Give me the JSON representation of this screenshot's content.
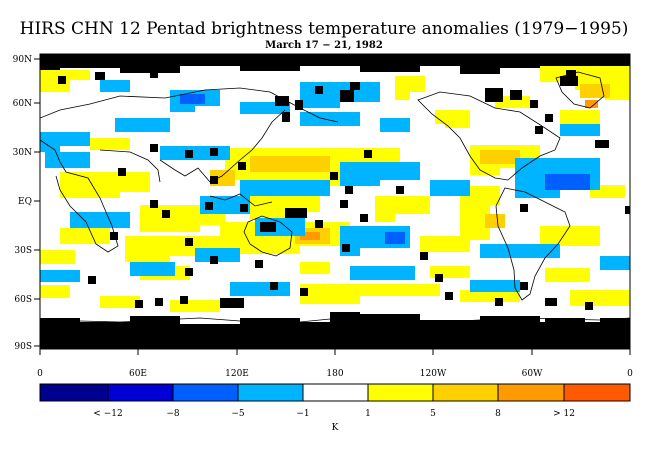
{
  "figure": {
    "title": "HIRS CHN 12 Pentad brightness temperature anomalies (1979−1995)",
    "subtitle": "March 17 − 21, 1982"
  },
  "axes": {
    "y_ticks": [
      "90N",
      "60N",
      "30N",
      "EQ",
      "30S",
      "60S",
      "90S"
    ],
    "x_ticks": [
      "0",
      "60E",
      "120E",
      "180",
      "120W",
      "60W",
      "0"
    ]
  },
  "colorbar": {
    "colors": [
      "#00008f",
      "#0000d6",
      "#0060ff",
      "#00b4ff",
      "#ffffff",
      "#ffff00",
      "#ffd000",
      "#ff9a00",
      "#ff5a00",
      "#ff0000"
    ],
    "labels": [
      "< −12",
      "−8",
      "−5",
      "−1",
      "1",
      "5",
      "8",
      "> 12"
    ],
    "units": "K"
  },
  "colors": {
    "missing": "#000000",
    "coast": "#000000",
    "frame": "#000000"
  }
}
